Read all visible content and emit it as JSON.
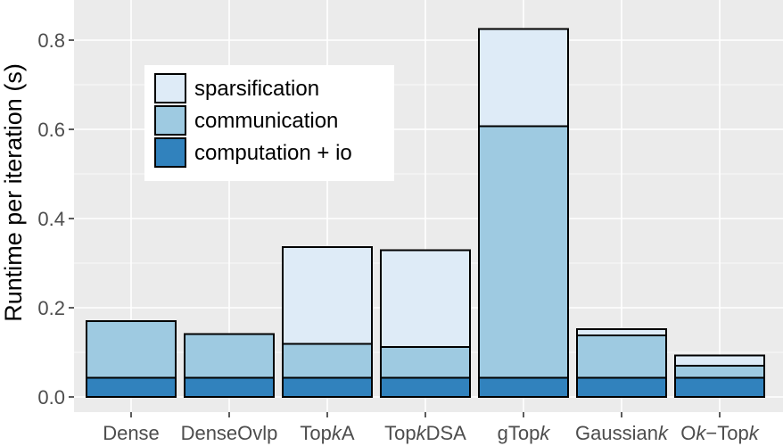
{
  "chart_data": {
    "type": "bar",
    "stacked": true,
    "categories": [
      "Dense",
      "DenseOvlp",
      "TopkA",
      "TopkDSA",
      "gTopk",
      "Gaussiank",
      "Ok−Topk"
    ],
    "category_labels": [
      [
        {
          "t": "Dense",
          "i": false
        }
      ],
      [
        {
          "t": "DenseOvlp",
          "i": false
        }
      ],
      [
        {
          "t": "Top",
          "i": false
        },
        {
          "t": "k",
          "i": true
        },
        {
          "t": "A",
          "i": false
        }
      ],
      [
        {
          "t": "Top",
          "i": false
        },
        {
          "t": "k",
          "i": true
        },
        {
          "t": "DSA",
          "i": false
        }
      ],
      [
        {
          "t": "gTop",
          "i": false
        },
        {
          "t": "k",
          "i": true
        }
      ],
      [
        {
          "t": "Gaussian",
          "i": false
        },
        {
          "t": "k",
          "i": true
        }
      ],
      [
        {
          "t": "O",
          "i": false
        },
        {
          "t": "k",
          "i": true
        },
        {
          "t": "−Top",
          "i": false
        },
        {
          "t": "k",
          "i": true
        }
      ]
    ],
    "series": [
      {
        "name": "computation + io",
        "color": "#3182bd",
        "values": [
          0.043,
          0.043,
          0.043,
          0.043,
          0.043,
          0.043,
          0.043
        ]
      },
      {
        "name": "communication",
        "color": "#9ecae1",
        "values": [
          0.127,
          0.098,
          0.076,
          0.069,
          0.564,
          0.095,
          0.027
        ]
      },
      {
        "name": "sparsification",
        "color": "#deebf7",
        "values": [
          0.0,
          0.0,
          0.217,
          0.217,
          0.218,
          0.014,
          0.023
        ]
      }
    ],
    "legend_order": [
      "sparsification",
      "communication",
      "computation + io"
    ],
    "legend_position": "top-left",
    "xlabel": "",
    "ylabel": "Runtime per iteration (s)",
    "ylim": [
      0,
      0.85
    ],
    "yticks": [
      "0.0",
      "0.2",
      "0.4",
      "0.6",
      "0.8"
    ],
    "ytick_values": [
      0,
      0.2,
      0.4,
      0.6,
      0.8
    ],
    "grid": true,
    "panel_color": "#ebebeb",
    "grid_color": "#ffffff",
    "bar_outline_color": "#000000"
  }
}
